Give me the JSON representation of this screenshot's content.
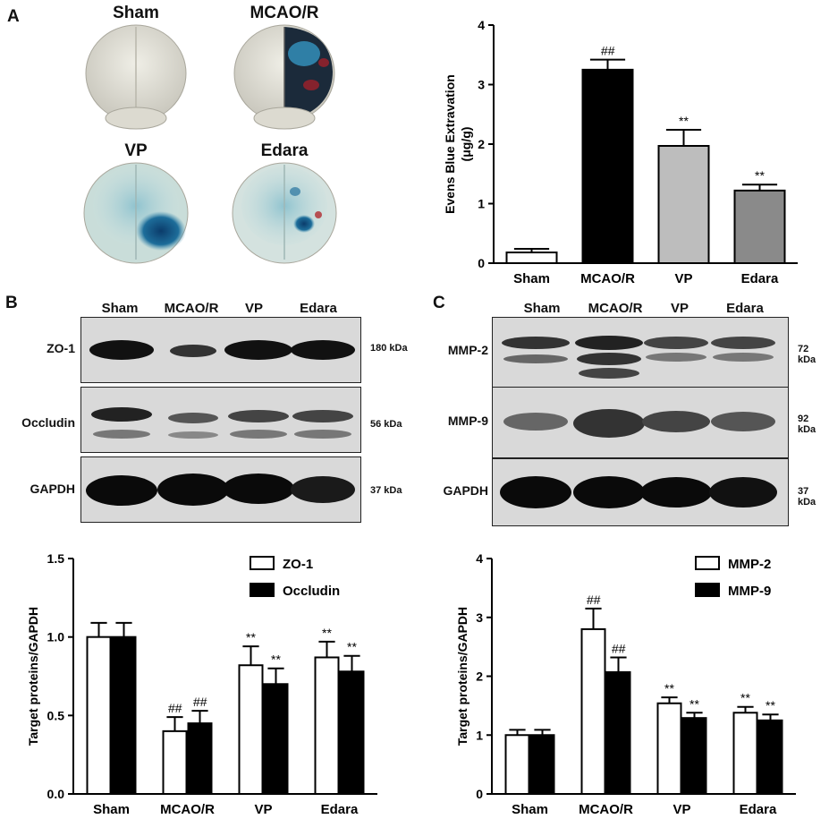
{
  "panels": {
    "a": "A",
    "b": "B",
    "c": "C"
  },
  "brains": {
    "sham": "Sham",
    "mcao": "MCAO/R",
    "vp": "VP",
    "edara": "Edara"
  },
  "blot_b": {
    "lanes": [
      "Sham",
      "MCAO/R",
      "VP",
      "Edara"
    ],
    "rows": [
      {
        "protein": "ZO-1",
        "kda": "180 kDa"
      },
      {
        "protein": "Occludin",
        "kda": "56 kDa"
      },
      {
        "protein": "GAPDH",
        "kda": "37 kDa"
      }
    ]
  },
  "blot_c": {
    "lanes": [
      "Sham",
      "MCAO/R",
      "VP",
      "Edara"
    ],
    "rows": [
      {
        "protein": "MMP-2",
        "kda": "72 kDa"
      },
      {
        "protein": "MMP-9",
        "kda": "92 kDa"
      },
      {
        "protein": "GAPDH",
        "kda": "37 kDa"
      }
    ]
  },
  "chart_data": [
    {
      "type": "bar",
      "categories": [
        "Sham",
        "MCAO/R",
        "VP",
        "Edara"
      ],
      "values": [
        0.18,
        3.25,
        1.97,
        1.22
      ],
      "errors": [
        0.06,
        0.17,
        0.27,
        0.1
      ],
      "annotations": [
        "",
        "##",
        "**",
        "**"
      ],
      "colors": [
        "#ffffff",
        "#000000",
        "#bdbdbd",
        "#8a8a8a"
      ],
      "ylabel": "Evens Blue Extravation (μg/g)",
      "ylim": [
        0,
        4
      ],
      "yticks": [
        "0",
        "1",
        "2",
        "3",
        "4"
      ]
    },
    {
      "type": "bar",
      "categories": [
        "Sham",
        "MCAO/R",
        "VP",
        "Edara"
      ],
      "series": [
        {
          "name": "ZO-1",
          "values": [
            1.0,
            0.4,
            0.82,
            0.87
          ],
          "errors": [
            0.09,
            0.09,
            0.12,
            0.1
          ],
          "annotations": [
            "",
            "##",
            "**",
            "**"
          ],
          "color": "#ffffff"
        },
        {
          "name": "Occludin",
          "values": [
            1.0,
            0.45,
            0.7,
            0.78
          ],
          "errors": [
            0.09,
            0.08,
            0.1,
            0.1
          ],
          "annotations": [
            "",
            "##",
            "**",
            "**"
          ],
          "color": "#000000"
        }
      ],
      "ylabel": "Target proteins/GAPDH",
      "ylim": [
        0,
        1.5
      ],
      "yticks": [
        "0.0",
        "0.5",
        "1.0",
        "1.5"
      ],
      "legend_position": "top-right"
    },
    {
      "type": "bar",
      "categories": [
        "Sham",
        "MCAO/R",
        "VP",
        "Edara"
      ],
      "series": [
        {
          "name": "MMP-2",
          "values": [
            1.0,
            2.8,
            1.54,
            1.38
          ],
          "errors": [
            0.09,
            0.35,
            0.1,
            0.1
          ],
          "annotations": [
            "",
            "##",
            "**",
            "**"
          ],
          "color": "#ffffff"
        },
        {
          "name": "MMP-9",
          "values": [
            1.0,
            2.07,
            1.29,
            1.25
          ],
          "errors": [
            0.09,
            0.25,
            0.09,
            0.1
          ],
          "annotations": [
            "",
            "##",
            "**",
            "**"
          ],
          "color": "#000000"
        }
      ],
      "ylabel": "Target proteins/GAPDH",
      "ylim": [
        0,
        4
      ],
      "yticks": [
        "0",
        "1",
        "2",
        "3",
        "4"
      ],
      "legend_position": "top-right"
    }
  ]
}
